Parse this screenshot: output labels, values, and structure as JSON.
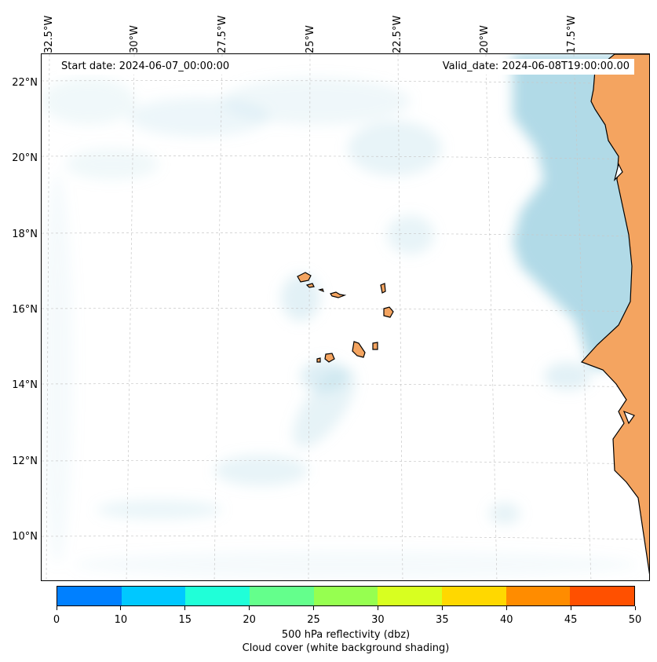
{
  "map": {
    "start_date": "Start date: 2024-06-07_00:00:00",
    "valid_date": "Valid_date: 2024-06-08T19:00:00.00",
    "lat_labels": [
      "22°N",
      "20°N",
      "18°N",
      "16°N",
      "14°N",
      "12°N",
      "10°N"
    ],
    "lon_labels": [
      "32.5°W",
      "30°W",
      "27.5°W",
      "25°W",
      "22.5°W",
      "20°W",
      "17.5°W"
    ],
    "colors": {
      "land": "#f4a460",
      "cloud": "#add8e6",
      "coastline": "#000000",
      "gridline": "#c8c8c8"
    }
  },
  "colorbar": {
    "ticks": [
      "0",
      "10",
      "15",
      "20",
      "25",
      "30",
      "35",
      "40",
      "45",
      "50"
    ],
    "colors": [
      "#0080ff",
      "#00c8ff",
      "#20ffd8",
      "#64ff8c",
      "#96ff50",
      "#d8ff20",
      "#ffd800",
      "#ff8c00",
      "#ff5000"
    ],
    "label_line1": "500 hPa reflectivity (dbz)",
    "label_line2": "Cloud cover (white background shading)"
  }
}
